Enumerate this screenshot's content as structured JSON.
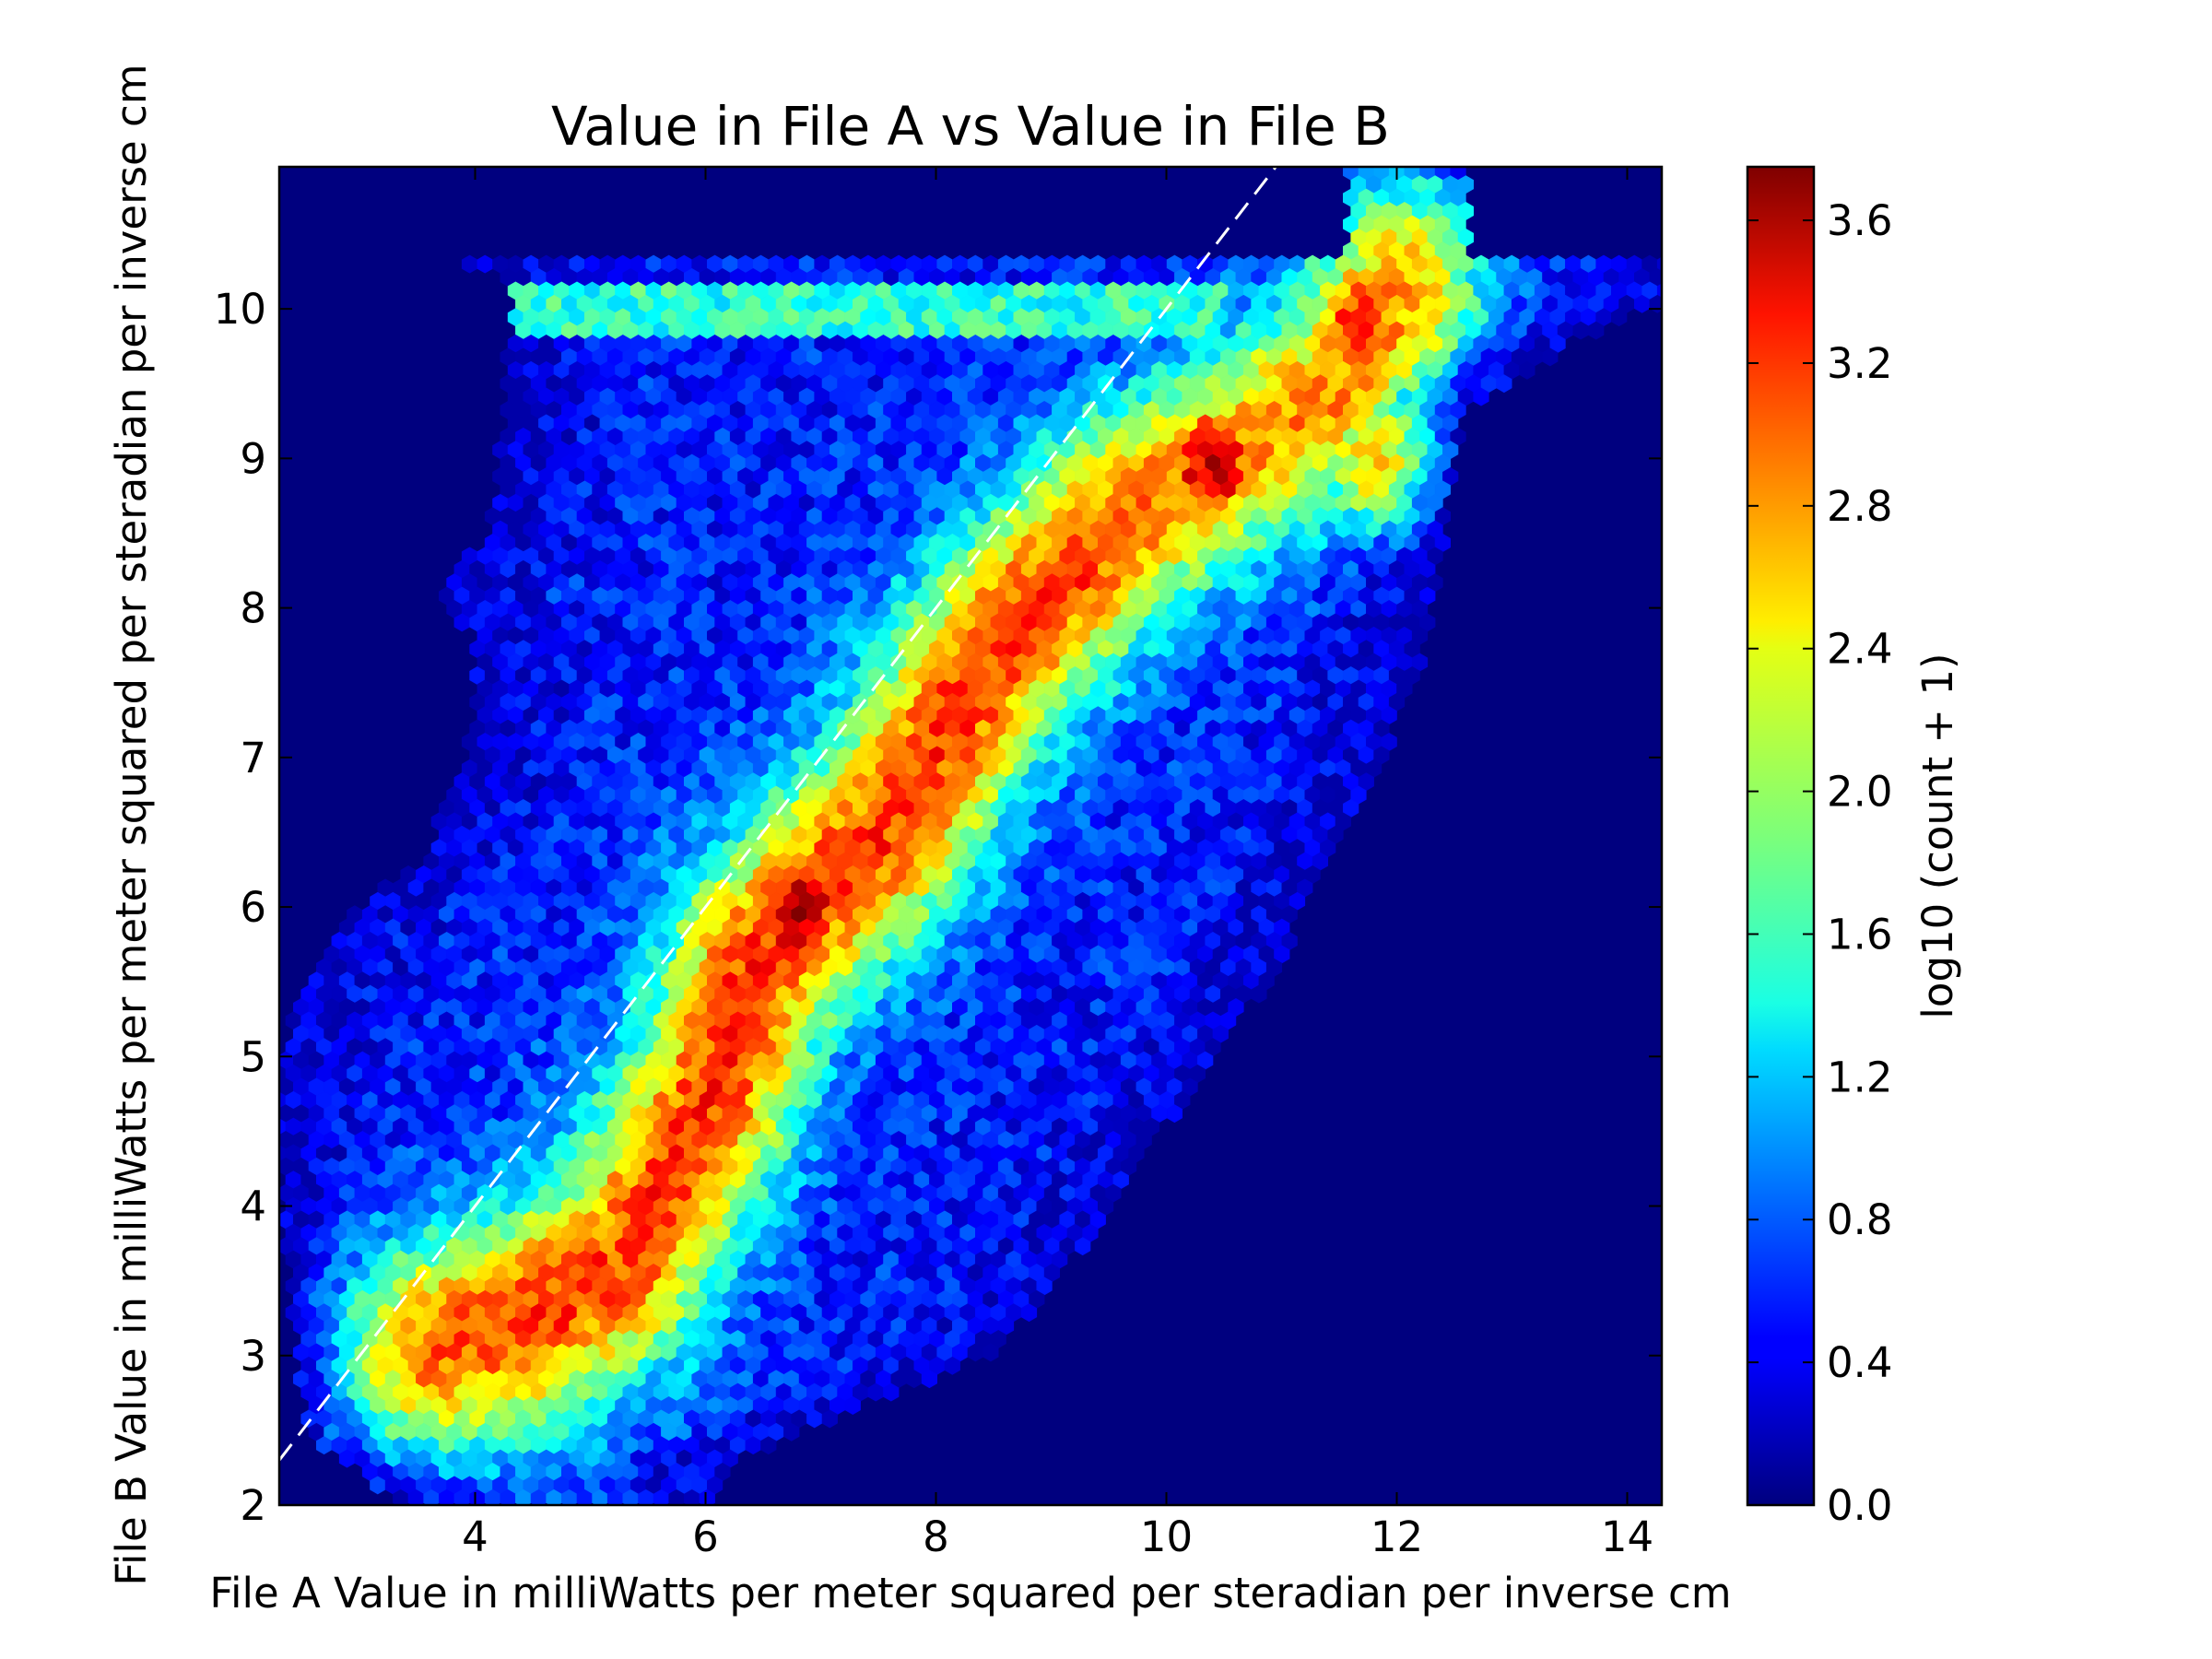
{
  "chart_data": {
    "type": "heatmap",
    "subtype": "hexbin",
    "title": "Value in File A vs Value in File B",
    "xlabel": "File A Value in milliWatts per meter squared per steradian per inverse cm",
    "ylabel": "File B Value in milliWatts per meter squared per steradian per inverse cm",
    "xlim": [
      2.3,
      14.3
    ],
    "ylim": [
      2.0,
      10.95
    ],
    "x_ticks": [
      4,
      6,
      8,
      10,
      12,
      14
    ],
    "y_ticks": [
      2,
      3,
      4,
      5,
      6,
      7,
      8,
      9,
      10
    ],
    "colorbar": {
      "label": "log10 (count + 1)",
      "range": [
        0.0,
        3.75
      ],
      "ticks": [
        0.0,
        0.4,
        0.8,
        1.2,
        1.6,
        2.0,
        2.4,
        2.8,
        3.2,
        3.6
      ],
      "tick_labels": [
        "0.0",
        "0.4",
        "0.8",
        "1.2",
        "1.6",
        "2.0",
        "2.4",
        "2.8",
        "3.2",
        "3.6"
      ],
      "colormap": "jet"
    },
    "reference_line": {
      "style": "dashed",
      "color": "#ffffff",
      "slope": 1,
      "intercept": 0
    },
    "background_value": 0.0,
    "density_peaks": [
      {
        "x": 6.8,
        "y": 5.95,
        "value": 3.75
      },
      {
        "x": 10.4,
        "y": 8.95,
        "value": 3.55
      },
      {
        "x": 11.9,
        "y": 9.0,
        "value": 3.3
      },
      {
        "x": 11.7,
        "y": 9.9,
        "value": 3.2
      },
      {
        "x": 4.6,
        "y": 3.3,
        "value": 3.0
      },
      {
        "x": 8.7,
        "y": 7.9,
        "value": 3.1
      }
    ]
  }
}
